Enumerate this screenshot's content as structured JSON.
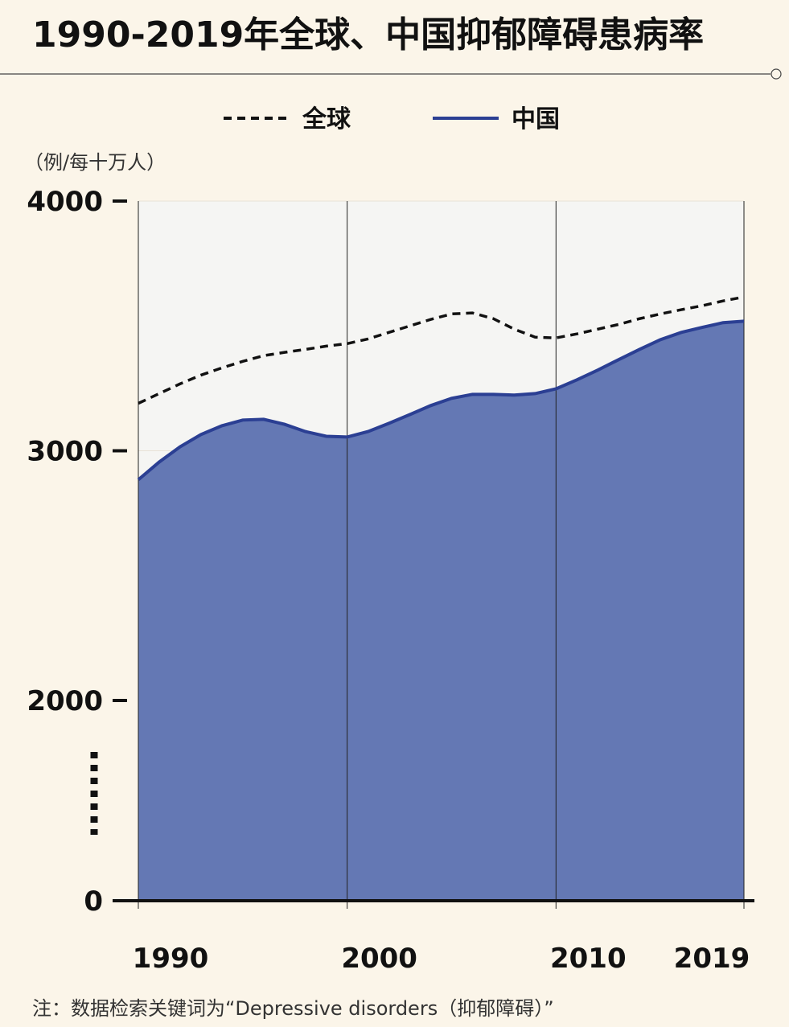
{
  "chart_data": {
    "type": "area_line",
    "title": "1990-2019年全球、中国抑郁障碍患病率",
    "y_label": "（例/每十万人）",
    "note": "注：数据检索关键词为“Depressive disorders（抑郁障碍）”",
    "x": [
      1990,
      1991,
      1992,
      1993,
      1994,
      1995,
      1996,
      1997,
      1998,
      1999,
      2000,
      2001,
      2002,
      2003,
      2004,
      2005,
      2006,
      2007,
      2008,
      2009,
      2010,
      2011,
      2012,
      2013,
      2014,
      2015,
      2016,
      2017,
      2018,
      2019
    ],
    "xlim": [
      1990,
      2019
    ],
    "xticks": [
      1990,
      2000,
      2010,
      2019
    ],
    "ylim": [
      0,
      4000
    ],
    "yticks": [
      0,
      2000,
      3000,
      4000
    ],
    "broken_axis": true,
    "grid": true,
    "series": [
      {
        "name": "全球",
        "color": "#111111",
        "style": "dashed",
        "values": [
          3190,
          3229,
          3268,
          3303,
          3332,
          3358,
          3381,
          3394,
          3406,
          3419,
          3429,
          3448,
          3474,
          3500,
          3526,
          3548,
          3552,
          3529,
          3487,
          3455,
          3452,
          3468,
          3487,
          3506,
          3529,
          3548,
          3565,
          3581,
          3600,
          3616
        ]
      },
      {
        "name": "中国",
        "color": "#2b3f93",
        "fill": "#6478b4",
        "style": "area",
        "values": [
          2884,
          2955,
          3016,
          3065,
          3100,
          3123,
          3126,
          3106,
          3077,
          3058,
          3055,
          3077,
          3110,
          3145,
          3181,
          3210,
          3226,
          3226,
          3223,
          3229,
          3248,
          3284,
          3323,
          3365,
          3406,
          3445,
          3474,
          3494,
          3513,
          3519
        ]
      }
    ]
  }
}
